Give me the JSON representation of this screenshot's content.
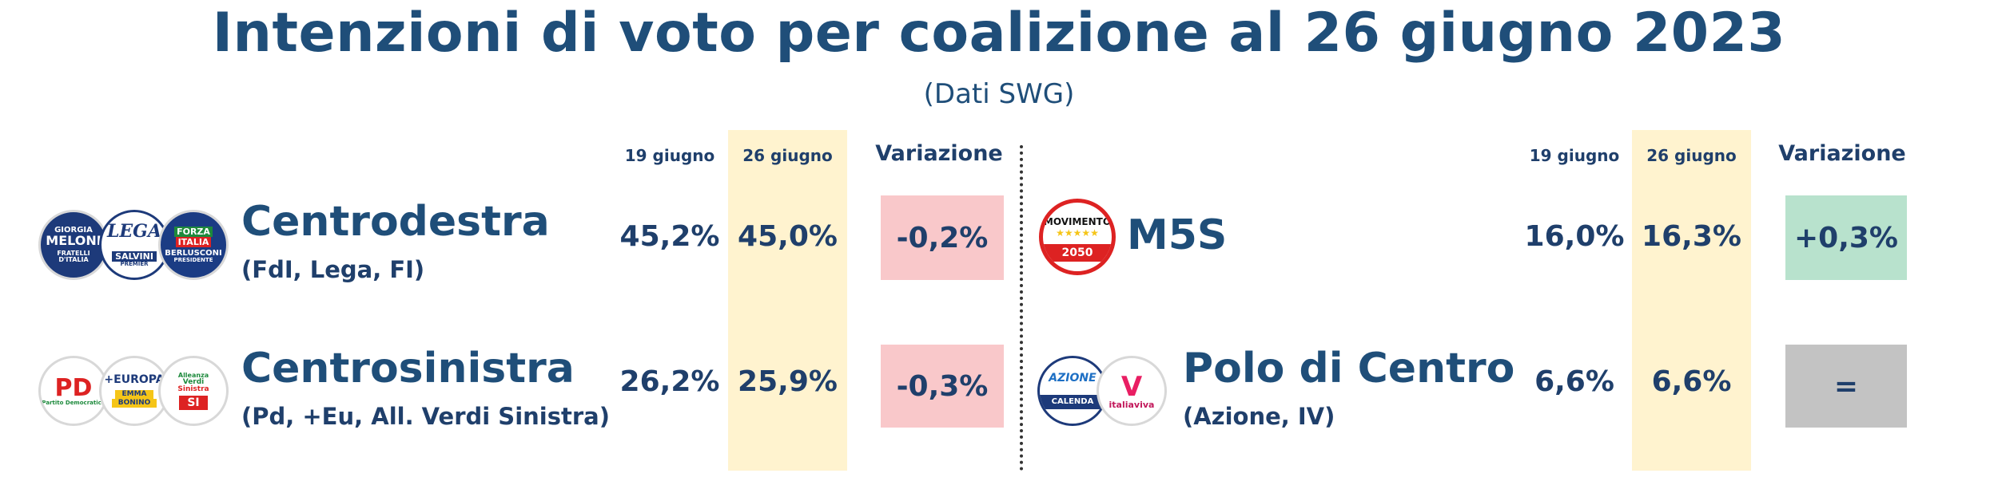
{
  "title": "Intenzioni di voto per coalizione al 26 giugno 2023",
  "subtitle": "(Dati SWG)",
  "columns": {
    "prev": "19 giugno",
    "curr": "26 giugno",
    "change": "Variazione"
  },
  "colors": {
    "negative": "#f9c8ca",
    "positive": "#b8e2cd",
    "neutral": "#c3c3c3",
    "highlight_band": "#fff3cf",
    "title": "#1f4e79"
  },
  "left": [
    {
      "name": "Centrodestra",
      "detail": "(FdI, Lega, FI)",
      "prev": "45,2%",
      "curr": "45,0%",
      "change": "-0,2%",
      "change_kind": "negative",
      "logos": [
        {
          "icon": "fratelli-ditalia-logo",
          "lines": [
            "GIORGIA",
            "MELONI",
            "FRATELLI",
            "D'ITALIA"
          ]
        },
        {
          "icon": "lega-logo",
          "lines": [
            "LEGA",
            "SALVINI",
            "PREMIER"
          ]
        },
        {
          "icon": "forza-italia-logo",
          "lines": [
            "FORZA",
            "ITALIA",
            "BERLUSCONI",
            "PRESIDENTE"
          ]
        }
      ]
    },
    {
      "name": "Centrosinistra",
      "detail": "(Pd, +Eu, All. Verdi Sinistra)",
      "prev": "26,2%",
      "curr": "25,9%",
      "change": "-0,3%",
      "change_kind": "negative",
      "logos": [
        {
          "icon": "partito-democratico-logo",
          "lines": [
            "PD",
            "Partito Democratico"
          ]
        },
        {
          "icon": "piu-europa-logo",
          "lines": [
            "+EUROPA",
            "EMMA",
            "BONINO"
          ]
        },
        {
          "icon": "alleanza-verdi-sinistra-logo",
          "lines": [
            "Alleanza",
            "Verdi",
            "Sinistra",
            "SI"
          ]
        }
      ]
    }
  ],
  "right": [
    {
      "name": "M5S",
      "detail": "",
      "prev": "16,0%",
      "curr": "16,3%",
      "change": "+0,3%",
      "change_kind": "positive",
      "logos": [
        {
          "icon": "movimento-5-stelle-logo",
          "lines": [
            "MOVIMENTO",
            "★★★★★",
            "2050"
          ]
        }
      ]
    },
    {
      "name": "Polo di Centro",
      "detail": "(Azione, IV)",
      "prev": "6,6%",
      "curr": "6,6%",
      "change": "=",
      "change_kind": "neutral",
      "logos": [
        {
          "icon": "azione-logo",
          "lines": [
            "AZIONE",
            "CALENDA"
          ]
        },
        {
          "icon": "italia-viva-logo",
          "lines": [
            "V",
            "italiaviva"
          ]
        }
      ]
    }
  ]
}
